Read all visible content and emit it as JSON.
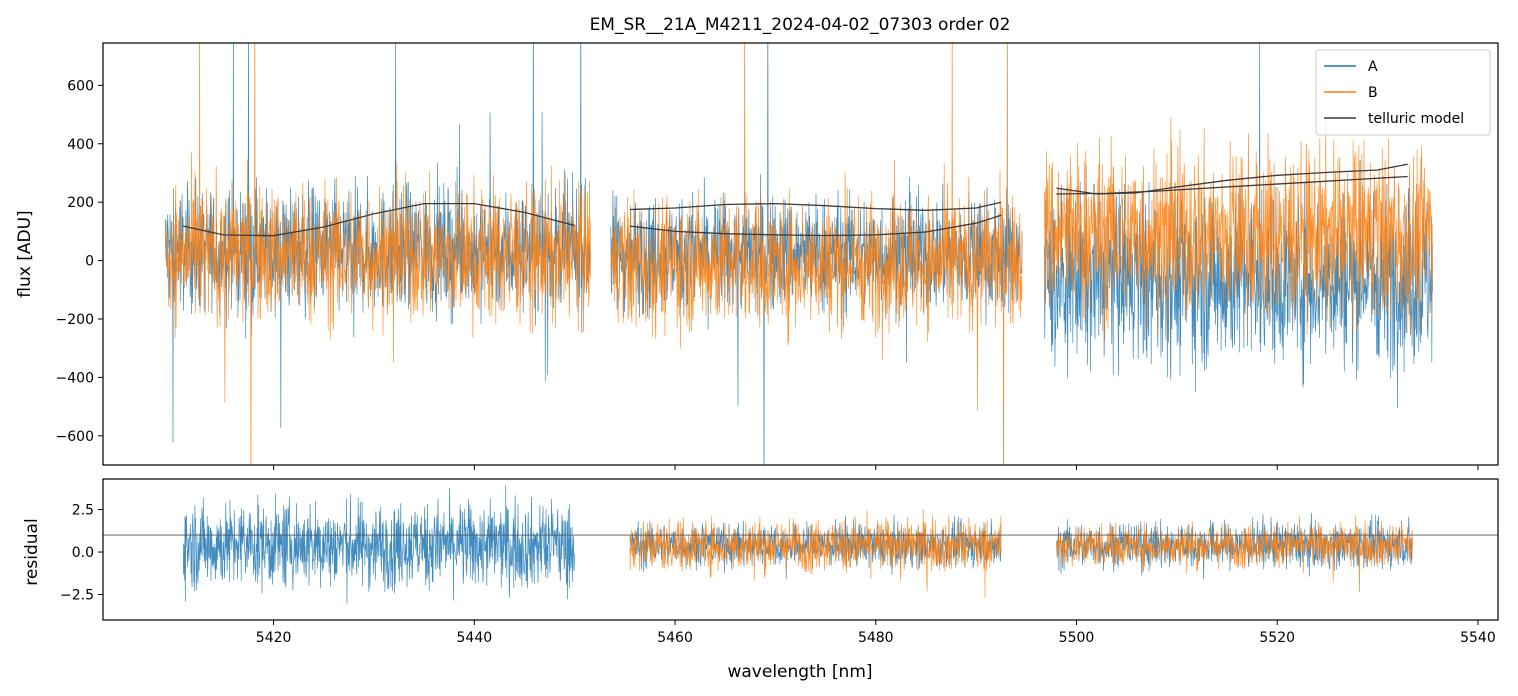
{
  "chart_data": [
    {
      "type": "line",
      "title": "EM_SR__21A_M4211_2024-04-02_07303  order 02",
      "xlabel": "",
      "ylabel": "flux [ADU]",
      "xlim": [
        5403,
        5542
      ],
      "ylim": [
        -700,
        745
      ],
      "yticks": [
        -600,
        -400,
        -200,
        0,
        200,
        400,
        600
      ],
      "ytick_labels": [
        "−600",
        "−400",
        "−200",
        "0",
        "200",
        "400",
        "600"
      ],
      "xticks": [
        5420,
        5440,
        5460,
        5480,
        5500,
        5520,
        5540
      ],
      "legend": {
        "placement": "top-right",
        "entries": [
          "A",
          "B",
          "telluric model"
        ]
      },
      "segments": [
        {
          "x": [
            5409.2,
            5451.6
          ]
        },
        {
          "x": [
            5453.6,
            5494.6
          ]
        },
        {
          "x": [
            5496.8,
            5535.5
          ]
        }
      ],
      "series": [
        {
          "name": "A",
          "color": "#1f77b4",
          "segment_levels": [
            35,
            20,
            -60
          ],
          "segment_noise": [
            230,
            220,
            330
          ]
        },
        {
          "name": "B",
          "color": "#ff7f0e",
          "segment_levels": [
            20,
            -5,
            90
          ],
          "segment_noise": [
            260,
            250,
            330
          ]
        },
        {
          "name": "telluric model",
          "color": "#3a3a3a",
          "lines": [
            {
              "x": [
                5411,
                5415,
                5420,
                5425,
                5430,
                5435,
                5440,
                5445,
                5450
              ],
              "y": [
                118,
                88,
                85,
                115,
                160,
                195,
                195,
                165,
                120
              ]
            },
            {
              "x": [
                5455.5,
                5460,
                5465,
                5470,
                5475,
                5480,
                5485,
                5490,
                5492.5
              ],
              "y": [
                175,
                180,
                192,
                195,
                188,
                178,
                172,
                180,
                200
              ]
            },
            {
              "x": [
                5455.5,
                5460,
                5465,
                5470,
                5475,
                5480,
                5485,
                5490,
                5492.5
              ],
              "y": [
                118,
                100,
                92,
                88,
                86,
                88,
                98,
                128,
                155
              ]
            },
            {
              "x": [
                5498,
                5503,
                5508,
                5513,
                5518,
                5523,
                5528,
                5533
              ],
              "y": [
                228,
                230,
                238,
                248,
                258,
                268,
                278,
                288
              ]
            },
            {
              "x": [
                5498,
                5502,
                5506,
                5510,
                5515,
                5520,
                5525,
                5530,
                5533
              ],
              "y": [
                248,
                228,
                232,
                252,
                275,
                292,
                302,
                310,
                330
              ]
            }
          ]
        }
      ]
    },
    {
      "type": "line",
      "title": "",
      "xlabel": "wavelength [nm]",
      "ylabel": "residual",
      "xlim": [
        5403,
        5542
      ],
      "ylim": [
        -4.0,
        4.3
      ],
      "yticks": [
        -2.5,
        0.0,
        2.5
      ],
      "ytick_labels": [
        "−2.5",
        "0.0",
        "2.5"
      ],
      "xticks": [
        5420,
        5440,
        5460,
        5480,
        5500,
        5520,
        5540
      ],
      "reference_line": 1.0,
      "segments": [
        {
          "x": [
            5411,
            5450
          ],
          "A_noise": 2.8,
          "B_noise": 0
        },
        {
          "x": [
            5455.5,
            5492.5
          ],
          "A_noise": 1.4,
          "B_noise": 1.7
        },
        {
          "x": [
            5498,
            5533.5
          ],
          "A_noise": 1.5,
          "B_noise": 1.4
        }
      ],
      "series": [
        {
          "name": "A",
          "color": "#1f77b4"
        },
        {
          "name": "B",
          "color": "#ff7f0e"
        }
      ]
    }
  ]
}
